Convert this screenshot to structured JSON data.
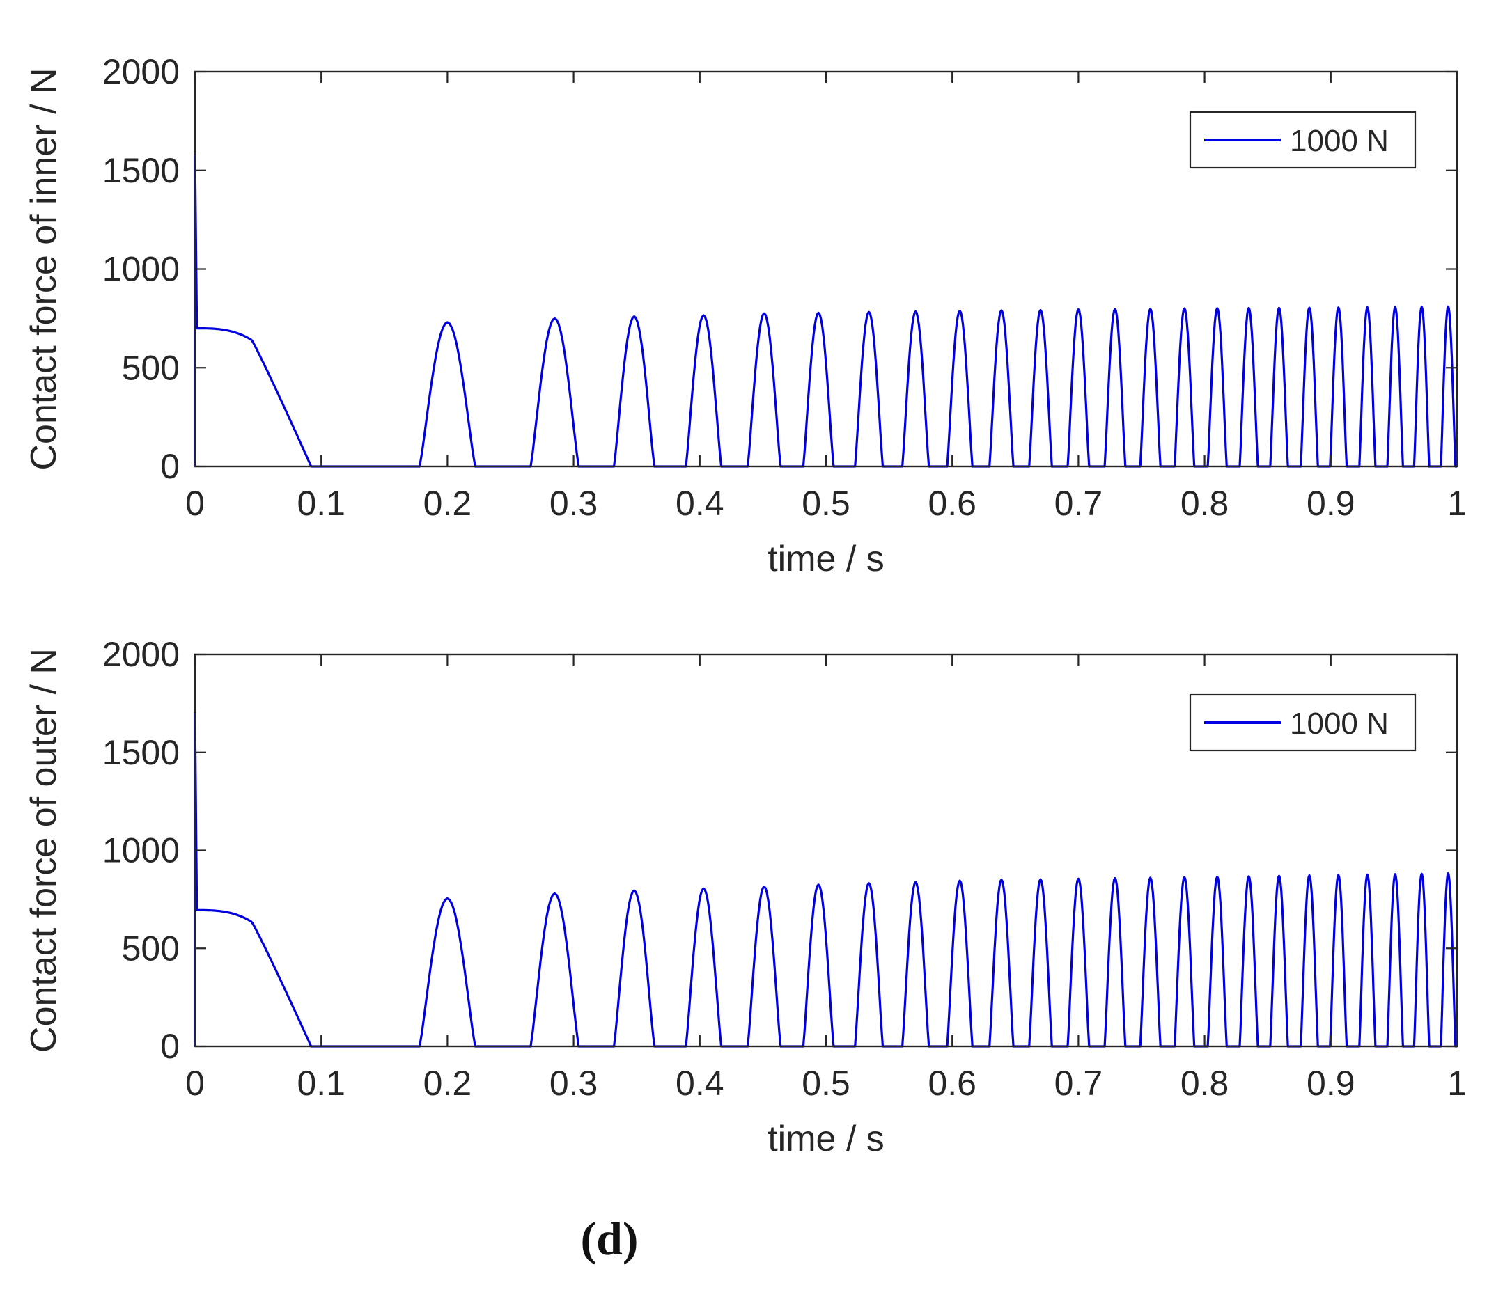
{
  "caption": "(d)",
  "chart_data": [
    {
      "type": "line",
      "title": "",
      "xlabel": "time / s",
      "ylabel": "Contact force of inner / N",
      "xlim": [
        0,
        1
      ],
      "ylim": [
        0,
        2000
      ],
      "xticks": [
        "0",
        "0.1",
        "0.2",
        "0.3",
        "0.4",
        "0.5",
        "0.6",
        "0.7",
        "0.8",
        "0.9",
        "1"
      ],
      "yticks": [
        "0",
        "500",
        "1000",
        "1500",
        "2000"
      ],
      "legend": {
        "position": "top-right",
        "entries": [
          "1000 N"
        ]
      },
      "series": [
        {
          "name": "1000 N",
          "color": "#0000e0",
          "initial_spike": 1580,
          "plateau": 700,
          "contact_loss_time": 0.092,
          "peak_times": [
            0.2,
            0.285,
            0.348,
            0.403,
            0.451,
            0.494,
            0.534,
            0.571,
            0.606,
            0.639,
            0.67,
            0.7,
            0.729,
            0.757,
            0.784,
            0.81,
            0.835,
            0.859,
            0.883,
            0.906,
            0.929,
            0.951,
            0.972,
            0.993
          ],
          "peak_values": [
            730,
            750,
            760,
            765,
            775,
            778,
            782,
            785,
            788,
            790,
            792,
            795,
            797,
            798,
            800,
            801,
            802,
            803,
            804,
            805,
            806,
            807,
            808,
            810
          ],
          "peak_half_widths": [
            0.022,
            0.019,
            0.016,
            0.014,
            0.013,
            0.012,
            0.011,
            0.0105,
            0.01,
            0.0095,
            0.009,
            0.0085,
            0.0082,
            0.008,
            0.0078,
            0.0075,
            0.0072,
            0.007,
            0.0068,
            0.0066,
            0.0064,
            0.0062,
            0.006,
            0.0058
          ]
        }
      ]
    },
    {
      "type": "line",
      "title": "",
      "xlabel": "time / s",
      "ylabel": "Contact force of outer / N",
      "xlim": [
        0,
        1
      ],
      "ylim": [
        0,
        2000
      ],
      "xticks": [
        "0",
        "0.1",
        "0.2",
        "0.3",
        "0.4",
        "0.5",
        "0.6",
        "0.7",
        "0.8",
        "0.9",
        "1"
      ],
      "yticks": [
        "0",
        "500",
        "1000",
        "1500",
        "2000"
      ],
      "legend": {
        "position": "top-right",
        "entries": [
          "1000 N"
        ]
      },
      "series": [
        {
          "name": "1000 N",
          "color": "#0000e0",
          "initial_spike": 1700,
          "plateau": 695,
          "contact_loss_time": 0.092,
          "peak_times": [
            0.2,
            0.285,
            0.348,
            0.403,
            0.451,
            0.494,
            0.534,
            0.571,
            0.606,
            0.639,
            0.67,
            0.7,
            0.729,
            0.757,
            0.784,
            0.81,
            0.835,
            0.859,
            0.883,
            0.906,
            0.929,
            0.951,
            0.972,
            0.993
          ],
          "peak_values": [
            755,
            780,
            795,
            805,
            815,
            825,
            832,
            838,
            845,
            850,
            852,
            855,
            858,
            860,
            863,
            865,
            867,
            870,
            872,
            874,
            876,
            878,
            880,
            882
          ],
          "peak_half_widths": [
            0.022,
            0.019,
            0.016,
            0.014,
            0.013,
            0.012,
            0.011,
            0.0105,
            0.01,
            0.0095,
            0.009,
            0.0085,
            0.0082,
            0.008,
            0.0078,
            0.0075,
            0.0072,
            0.007,
            0.0068,
            0.0066,
            0.0064,
            0.0062,
            0.006,
            0.0058
          ]
        }
      ]
    }
  ]
}
